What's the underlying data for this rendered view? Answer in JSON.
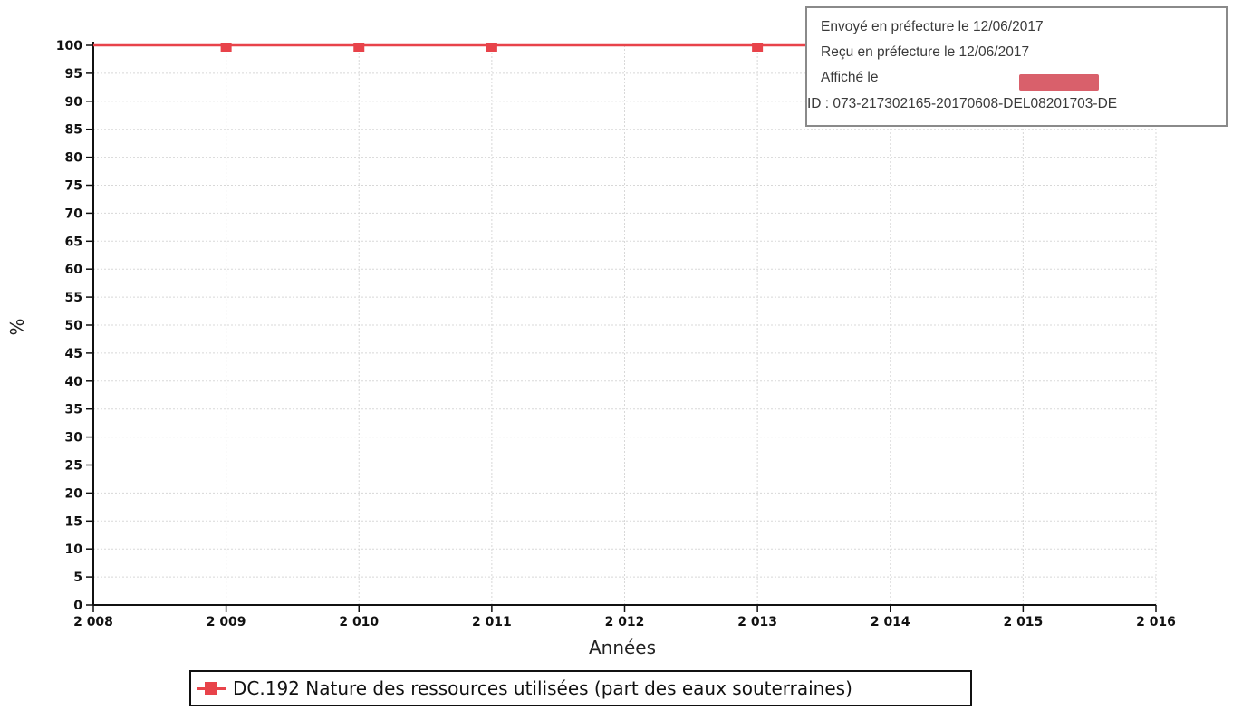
{
  "chart_data": {
    "type": "line",
    "title": "",
    "xlabel": "Années",
    "ylabel": "%",
    "x": [
      2008,
      2009,
      2010,
      2011,
      2012,
      2013,
      2014,
      2015,
      2016
    ],
    "x_tick_labels": [
      "2 008",
      "2 009",
      "2 010",
      "2 011",
      "2 012",
      "2 013",
      "2 014",
      "2 015",
      "2 016"
    ],
    "y_ticks": [
      0,
      5,
      10,
      15,
      20,
      25,
      30,
      35,
      40,
      45,
      50,
      55,
      60,
      65,
      70,
      75,
      80,
      85,
      90,
      95,
      100
    ],
    "xlim": [
      2008,
      2016
    ],
    "ylim": [
      0,
      100
    ],
    "grid": true,
    "legend_position": "bottom-center",
    "series": [
      {
        "name": "DC.192 Nature des ressources utilisées (part des eaux souterraines)",
        "color": "#e8434a",
        "x": [
          2008,
          2009,
          2010,
          2011,
          2012,
          2013,
          2014,
          2015,
          2016
        ],
        "values": [
          100,
          100,
          100,
          100,
          100,
          100,
          100,
          100,
          100
        ],
        "markers": [
          2009,
          2010,
          2011,
          2013,
          2014,
          2015
        ]
      }
    ]
  },
  "stamp": {
    "line1": "Envoyé en préfecture le 12/06/2017",
    "line2": "Reçu en préfecture le 12/06/2017",
    "line3": "Affiché le",
    "line4": "ID : 073-217302165-20170608-DEL08201703-DE",
    "logo_color": "#d9606b"
  },
  "colors": {
    "series": "#e8434a",
    "grid": "#d8d8d8",
    "axis": "#111111"
  }
}
